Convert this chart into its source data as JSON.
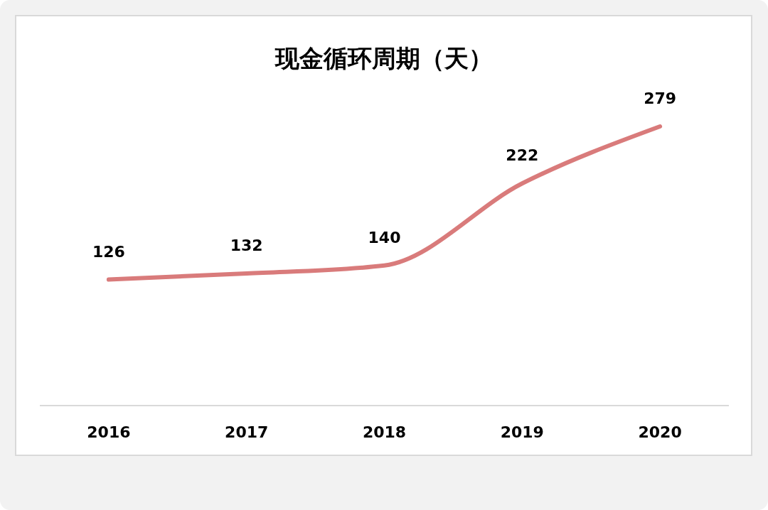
{
  "chart_data": {
    "type": "line",
    "title": "现金循环周期（天）",
    "categories": [
      "2016",
      "2017",
      "2018",
      "2019",
      "2020"
    ],
    "series": [
      {
        "color": "#d97b7b",
        "values": [
          126,
          132,
          140,
          222,
          279
        ]
      }
    ],
    "tick_labels": "x",
    "data_labels": true
  }
}
